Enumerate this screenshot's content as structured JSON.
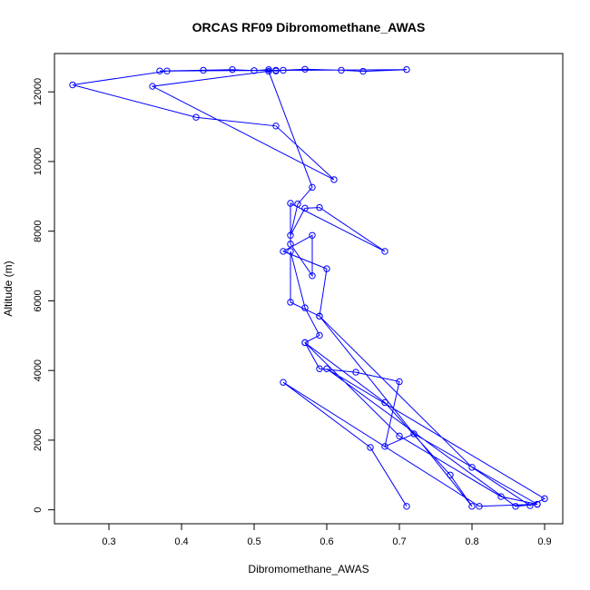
{
  "chart_data": {
    "type": "line",
    "title": "ORCAS RF09 Dibromomethane_AWAS",
    "xlabel": "Dibromomethane_AWAS",
    "ylabel": "Altitude (m)",
    "xlim": [
      0.225,
      0.925
    ],
    "ylim": [
      -400,
      13100
    ],
    "x_ticks": [
      0.3,
      0.4,
      0.5,
      0.6,
      0.7,
      0.8,
      0.9
    ],
    "x_tick_labels": [
      "0.3",
      "0.4",
      "0.5",
      "0.6",
      "0.7",
      "0.8",
      "0.9"
    ],
    "y_ticks": [
      0,
      2000,
      4000,
      6000,
      8000,
      10000,
      12000
    ],
    "y_tick_labels": [
      "0",
      "2000",
      "4000",
      "6000",
      "8000",
      "10000",
      "12000"
    ],
    "grid": false,
    "series": [
      {
        "color": "#0000ff",
        "marker": "open-circle",
        "points": [
          [
            0.37,
            12600
          ],
          [
            0.43,
            12620
          ],
          [
            0.47,
            12640
          ],
          [
            0.5,
            12610
          ],
          [
            0.52,
            12640
          ],
          [
            0.53,
            12600
          ],
          [
            0.54,
            12620
          ],
          [
            0.57,
            12650
          ],
          [
            0.62,
            12620
          ],
          [
            0.65,
            12590
          ],
          [
            0.71,
            12640
          ],
          [
            0.38,
            12600
          ],
          [
            0.25,
            12200
          ],
          [
            0.42,
            11270
          ],
          [
            0.53,
            11020
          ],
          [
            0.61,
            9480
          ],
          [
            0.36,
            12160
          ],
          [
            0.53,
            12620
          ],
          [
            0.52,
            12590
          ],
          [
            0.58,
            9260
          ],
          [
            0.56,
            8780
          ],
          [
            0.55,
            7880
          ],
          [
            0.57,
            8660
          ],
          [
            0.59,
            8680
          ],
          [
            0.68,
            7420
          ],
          [
            0.55,
            8800
          ],
          [
            0.55,
            7630
          ],
          [
            0.58,
            6720
          ],
          [
            0.58,
            7880
          ],
          [
            0.54,
            7420
          ],
          [
            0.6,
            6920
          ],
          [
            0.59,
            5560
          ],
          [
            0.55,
            5960
          ],
          [
            0.55,
            7420
          ],
          [
            0.57,
            5800
          ],
          [
            0.59,
            5010
          ],
          [
            0.57,
            4800
          ],
          [
            0.59,
            4050
          ],
          [
            0.64,
            3950
          ],
          [
            0.7,
            3680
          ],
          [
            0.68,
            1820
          ],
          [
            0.72,
            2180
          ],
          [
            0.89,
            160
          ],
          [
            0.84,
            380
          ],
          [
            0.7,
            2120
          ],
          [
            0.57,
            4800
          ],
          [
            0.68,
            3080
          ],
          [
            0.77,
            1000
          ],
          [
            0.8,
            100
          ],
          [
            0.59,
            5560
          ],
          [
            0.8,
            1220
          ],
          [
            0.88,
            120
          ],
          [
            0.9,
            320
          ],
          [
            0.6,
            4050
          ],
          [
            0.86,
            100
          ],
          [
            0.89,
            160
          ],
          [
            0.81,
            100
          ],
          [
            0.54,
            3660
          ],
          [
            0.66,
            1790
          ],
          [
            0.71,
            100
          ]
        ]
      }
    ]
  }
}
